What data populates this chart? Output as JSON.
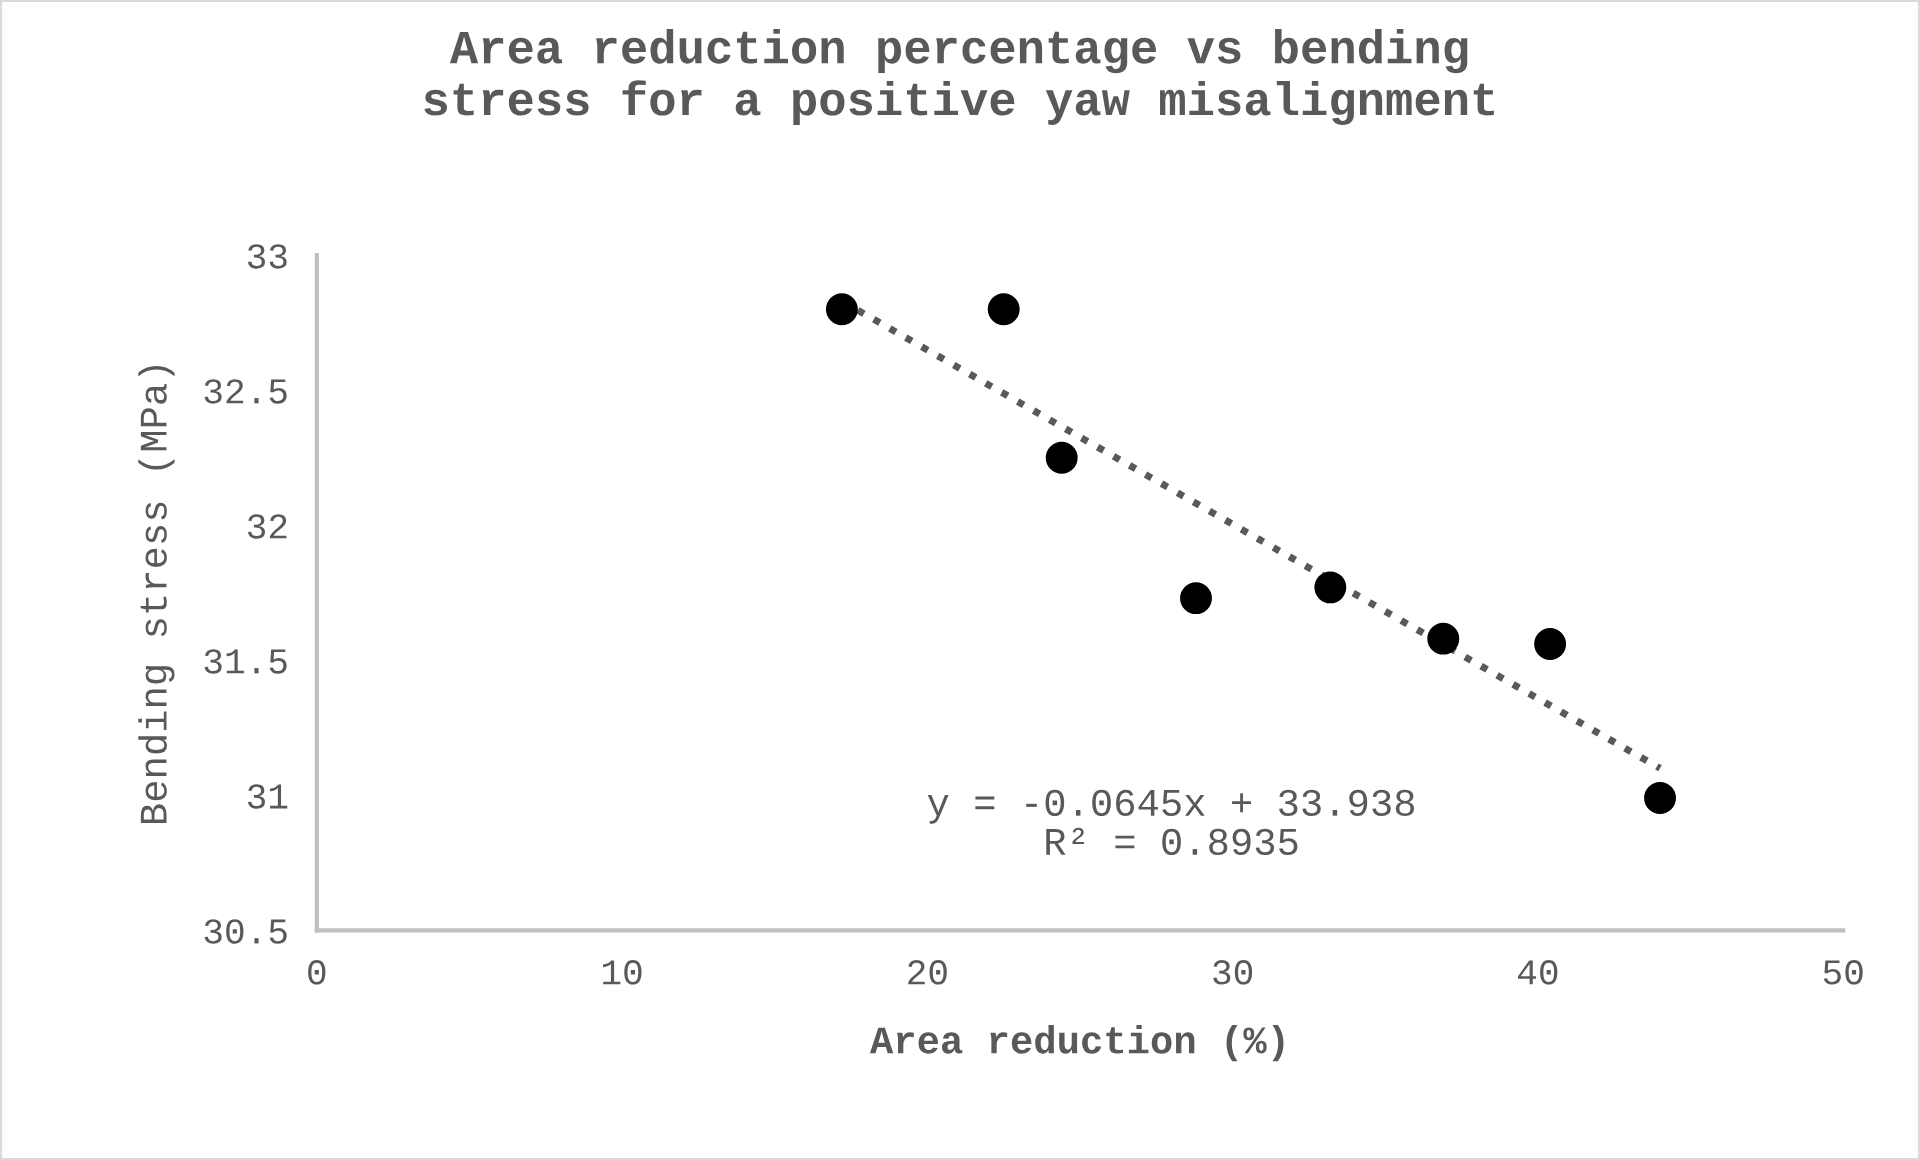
{
  "chart_data": {
    "type": "scatter",
    "title": "Area reduction percentage vs bending\nstress for a positive yaw misalignment",
    "xlabel": "Area reduction (%)",
    "ylabel": "Bending stress (MPa)",
    "series": [
      {
        "color": "#000000",
        "marker": "circle",
        "x": [
          17.2,
          22.5,
          24.4,
          28.8,
          33.2,
          36.9,
          40.4,
          44.0
        ],
        "values": [
          32.8,
          32.8,
          32.25,
          31.73,
          31.77,
          31.58,
          31.56,
          30.99
        ]
      },
      {
        "type": "line",
        "color": "#595959",
        "line_style": "dotted",
        "marker": "none",
        "x": [
          17.2,
          44.0
        ],
        "values": [
          32.83,
          31.1
        ]
      }
    ],
    "annotations": [
      "y = -0.0645x + 33.938\nR² = 0.8935"
    ],
    "xlim": [
      0,
      50
    ],
    "xticks": [
      0,
      10,
      20,
      30,
      40,
      50
    ],
    "ylim": [
      30.5,
      33
    ],
    "yticks": [
      30.5,
      31,
      31.5,
      32,
      32.5,
      33
    ],
    "grid": false,
    "legend": false
  }
}
